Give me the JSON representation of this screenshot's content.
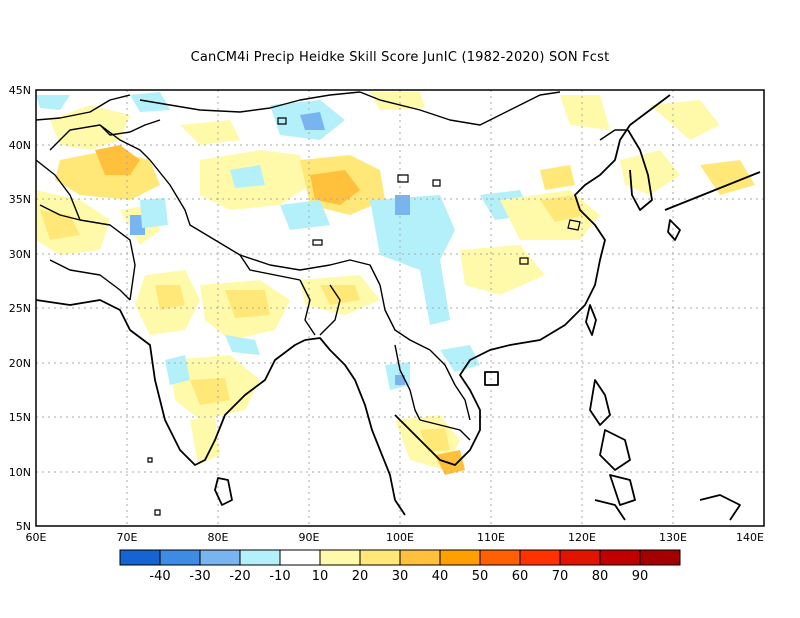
{
  "title": "CanCM4i Precip Heidke Skill Score JunIC (1982-2020) SON Fcst",
  "map": {
    "region": "South and East Asia",
    "lon_range": [
      60,
      140
    ],
    "lat_range": [
      5,
      45
    ],
    "grid": "dotted",
    "lat_labels": [
      "45N",
      "40N",
      "35N",
      "30N",
      "25N",
      "20N",
      "15N",
      "10N",
      "5N"
    ],
    "lon_labels": [
      "60E",
      "70E",
      "80E",
      "90E",
      "100E",
      "110E",
      "120E",
      "130E",
      "140E"
    ]
  },
  "colorbar": {
    "colors": [
      "#1464d2",
      "#3c8ce6",
      "#78b4f0",
      "#b4f0fa",
      "#ffffff",
      "#fffaaa",
      "#ffe878",
      "#ffc03c",
      "#ffa000",
      "#ff6000",
      "#ff3200",
      "#e11400",
      "#c00000",
      "#a50000"
    ],
    "labels": [
      "-40",
      "-30",
      "-20",
      "-10",
      "10",
      "20",
      "30",
      "40",
      "50",
      "60",
      "70",
      "80",
      "90"
    ]
  }
}
